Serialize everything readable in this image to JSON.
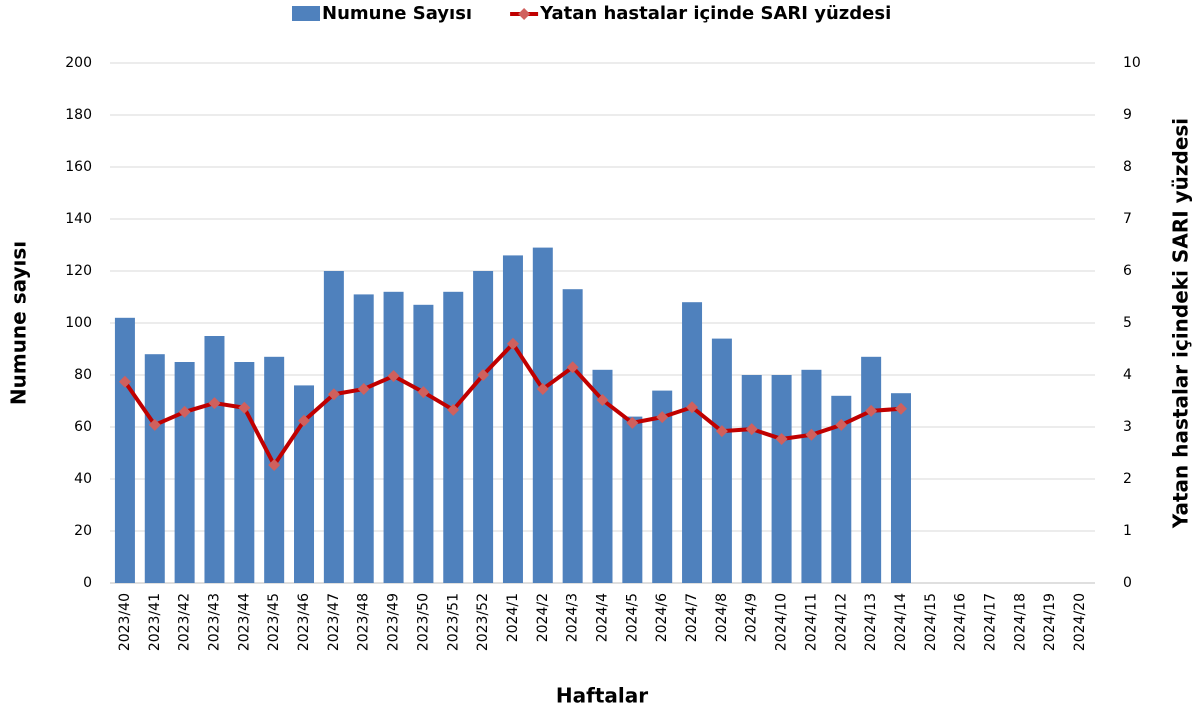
{
  "chart_data": {
    "type": "bar-line",
    "x_label": "Haftalar",
    "y_label": "Numune sayısı",
    "y2_label": "Yatan hastalar içindeki SARI yüzdesi",
    "categories": [
      "2023/40",
      "2023/41",
      "2023/42",
      "2023/43",
      "2023/44",
      "2023/45",
      "2023/46",
      "2023/47",
      "2023/48",
      "2023/49",
      "2023/50",
      "2023/51",
      "2023/52",
      "2024/1",
      "2024/2",
      "2024/3",
      "2024/4",
      "2024/5",
      "2024/6",
      "2024/7",
      "2024/8",
      "2024/9",
      "2024/10",
      "2024/11",
      "2024/12",
      "2024/13",
      "2024/14",
      "2024/15",
      "2024/16",
      "2024/17",
      "2024/18",
      "2024/19",
      "2024/20"
    ],
    "series": [
      {
        "name": "Numune Sayısı",
        "color": "#4f81bd",
        "type": "bar",
        "values": [
          102,
          88,
          85,
          95,
          85,
          87,
          76,
          120,
          111,
          112,
          107,
          112,
          120,
          126,
          129,
          113,
          82,
          64,
          74,
          108,
          94,
          80,
          80,
          82,
          72,
          87,
          73,
          null,
          null,
          null,
          null,
          null,
          null
        ]
      },
      {
        "name": "Yatan hastalar içinde SARI yüzdesi",
        "color": "#c00000",
        "marker_color": "#d0605d",
        "type": "line",
        "axis": "y2",
        "values": [
          3.87,
          3.04,
          3.29,
          3.46,
          3.37,
          2.27,
          3.12,
          3.63,
          3.73,
          3.98,
          3.67,
          3.33,
          4.0,
          4.6,
          3.73,
          4.15,
          3.52,
          3.08,
          3.19,
          3.38,
          2.92,
          2.96,
          2.77,
          2.85,
          3.04,
          3.31,
          3.35,
          null,
          null,
          null,
          null,
          null,
          null
        ]
      }
    ],
    "ylim": [
      0,
      200
    ],
    "yticks": [
      0,
      20,
      40,
      60,
      80,
      100,
      120,
      140,
      160,
      180,
      200
    ],
    "y2lim": [
      0,
      10
    ],
    "y2ticks": [
      0,
      1,
      2,
      3,
      4,
      5,
      6,
      7,
      8,
      9,
      10
    ],
    "grid": true,
    "legend": "top"
  }
}
